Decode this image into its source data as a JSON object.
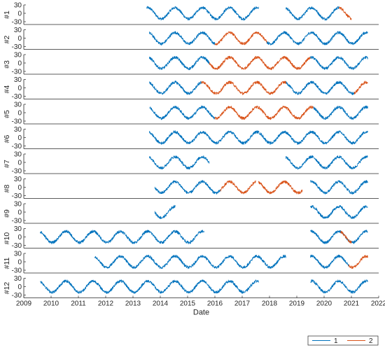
{
  "chart_data": {
    "type": "line",
    "xlabel": "Date",
    "x_ticks": [
      "2009",
      "2010",
      "2011",
      "2012",
      "2013",
      "2014",
      "2015",
      "2016",
      "2017",
      "2018",
      "2019",
      "2020",
      "2021",
      "2022"
    ],
    "xlim": [
      2009,
      2022
    ],
    "ylim": [
      -40,
      30
    ],
    "y_ticks": [
      "30",
      "0",
      "-30"
    ],
    "grid": false,
    "legend_position": "bottom-right",
    "legend": [
      {
        "key": "series1",
        "label": "1",
        "color": "#0072BD"
      },
      {
        "key": "series2",
        "label": "2",
        "color": "#D95319"
      }
    ],
    "extra_colors": {
      "series3": "#EDB120",
      "series4": "#77AC30"
    },
    "signal_model": {
      "mean": 0,
      "amplitude": 20,
      "period_years": 1,
      "coldest_point": "mid-January"
    },
    "panels": [
      {
        "label": "#1",
        "series": [
          {
            "name": "1",
            "segments": [
              [
                2013.5,
                2017.6
              ],
              [
                2018.6,
                2020.55
              ]
            ]
          },
          {
            "name": "2",
            "segments": [
              [
                2020.55,
                2021.0
              ]
            ]
          }
        ]
      },
      {
        "label": "#2",
        "series": [
          {
            "name": "1",
            "segments": [
              [
                2013.6,
                2016.0
              ],
              [
                2017.9,
                2021.6
              ]
            ]
          },
          {
            "name": "2",
            "segments": [
              [
                2016.0,
                2017.9
              ]
            ]
          }
        ]
      },
      {
        "label": "#3",
        "series": [
          {
            "name": "1",
            "segments": [
              [
                2013.6,
                2015.8
              ],
              [
                2019.5,
                2021.6
              ]
            ]
          },
          {
            "name": "2",
            "segments": [
              [
                2015.8,
                2019.5
              ]
            ]
          }
        ]
      },
      {
        "label": "#4",
        "series": [
          {
            "name": "1",
            "segments": [
              [
                2013.6,
                2015.5
              ],
              [
                2018.6,
                2021.1
              ]
            ]
          },
          {
            "name": "2",
            "segments": [
              [
                2015.5,
                2018.6
              ],
              [
                2021.1,
                2021.6
              ]
            ]
          }
        ]
      },
      {
        "label": "#5",
        "series": [
          {
            "name": "1",
            "segments": [
              [
                2013.6,
                2016.0
              ],
              [
                2019.6,
                2021.6
              ]
            ]
          },
          {
            "name": "2",
            "segments": [
              [
                2016.0,
                2019.6
              ]
            ]
          }
        ]
      },
      {
        "label": "#6",
        "series": [
          {
            "name": "1",
            "segments": [
              [
                2013.6,
                2021.6
              ]
            ]
          }
        ]
      },
      {
        "label": "#7",
        "series": [
          {
            "name": "1",
            "segments": [
              [
                2013.6,
                2015.8
              ],
              [
                2018.6,
                2021.6
              ]
            ]
          }
        ]
      },
      {
        "label": "#8",
        "series": [
          {
            "name": "1",
            "segments": [
              [
                2013.8,
                2016.2
              ],
              [
                2019.5,
                2020.9
              ],
              [
                2020.9,
                2021.6
              ]
            ]
          },
          {
            "name": "2",
            "segments": [
              [
                2016.2,
                2017.5
              ],
              [
                2017.6,
                2019.2
              ]
            ]
          }
        ]
      },
      {
        "label": "#9",
        "series": [
          {
            "name": "1",
            "segments": [
              [
                2013.8,
                2014.55
              ],
              [
                2019.5,
                2021.6
              ]
            ]
          }
        ]
      },
      {
        "label": "#10",
        "series": [
          {
            "name": "1",
            "segments": [
              [
                2009.6,
                2015.6
              ],
              [
                2019.5,
                2021.6
              ]
            ]
          },
          {
            "name": "2",
            "segments": [
              [
                2020.6,
                2021.0
              ]
            ]
          }
        ]
      },
      {
        "label": "#11",
        "series": [
          {
            "name": "1",
            "segments": [
              [
                2011.6,
                2018.6
              ],
              [
                2019.5,
                2020.9
              ]
            ]
          },
          {
            "name": "2",
            "segments": [
              [
                2020.9,
                2021.6
              ]
            ]
          }
        ]
      },
      {
        "label": "#12",
        "series": [
          {
            "name": "1",
            "segments": [
              [
                2009.6,
                2017.6
              ],
              [
                2019.5,
                2021.6
              ]
            ]
          }
        ]
      }
    ]
  }
}
